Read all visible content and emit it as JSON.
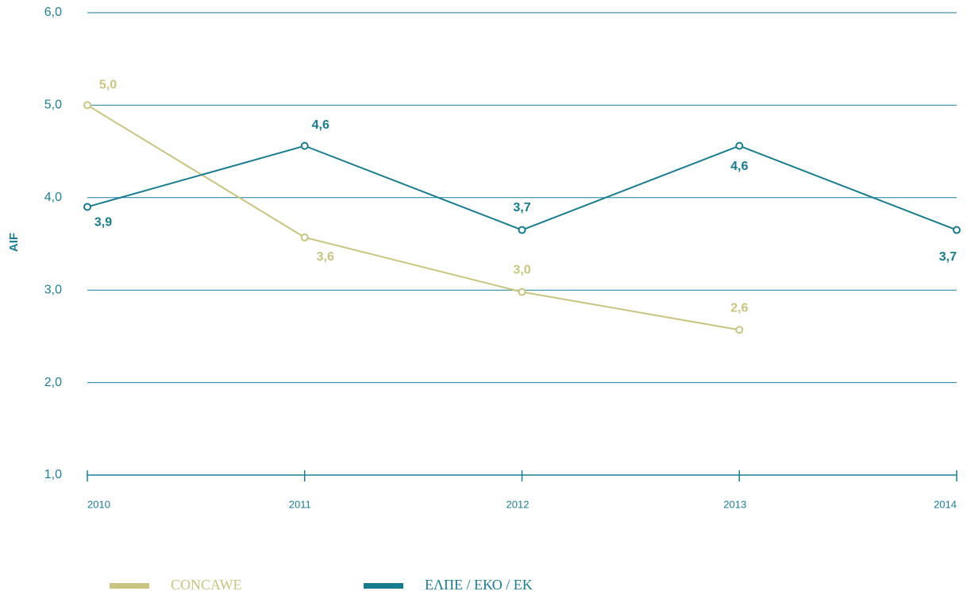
{
  "chart_data": {
    "type": "line",
    "y_label": "AIF",
    "categories": [
      "2010",
      "2011",
      "2012",
      "2013",
      "2014"
    ],
    "series": [
      {
        "name": "CONCAWE",
        "color": "#c9c47f",
        "values": [
          5.0,
          3.57,
          2.98,
          2.57,
          null
        ],
        "value_labels": [
          "5,0",
          "3,6",
          "3,0",
          "2,6",
          null
        ]
      },
      {
        "name": "ΕΛΠΕ / ΕΚΟ / ΕΚ",
        "color": "#167d91",
        "values": [
          3.9,
          4.56,
          3.65,
          4.56,
          3.65
        ],
        "value_labels": [
          "3,9",
          "4,6",
          "3,7",
          "4,6",
          "3,7"
        ]
      }
    ],
    "ylim": [
      1,
      6
    ],
    "yticks": [
      {
        "value": 1,
        "label": "1,0"
      },
      {
        "value": 2,
        "label": "2,0"
      },
      {
        "value": 3,
        "label": "3,0"
      },
      {
        "value": 4,
        "label": "4,0"
      },
      {
        "value": 5,
        "label": "5,0"
      },
      {
        "value": 6,
        "label": "6,0"
      }
    ],
    "grid": true,
    "legend": "bottom"
  }
}
